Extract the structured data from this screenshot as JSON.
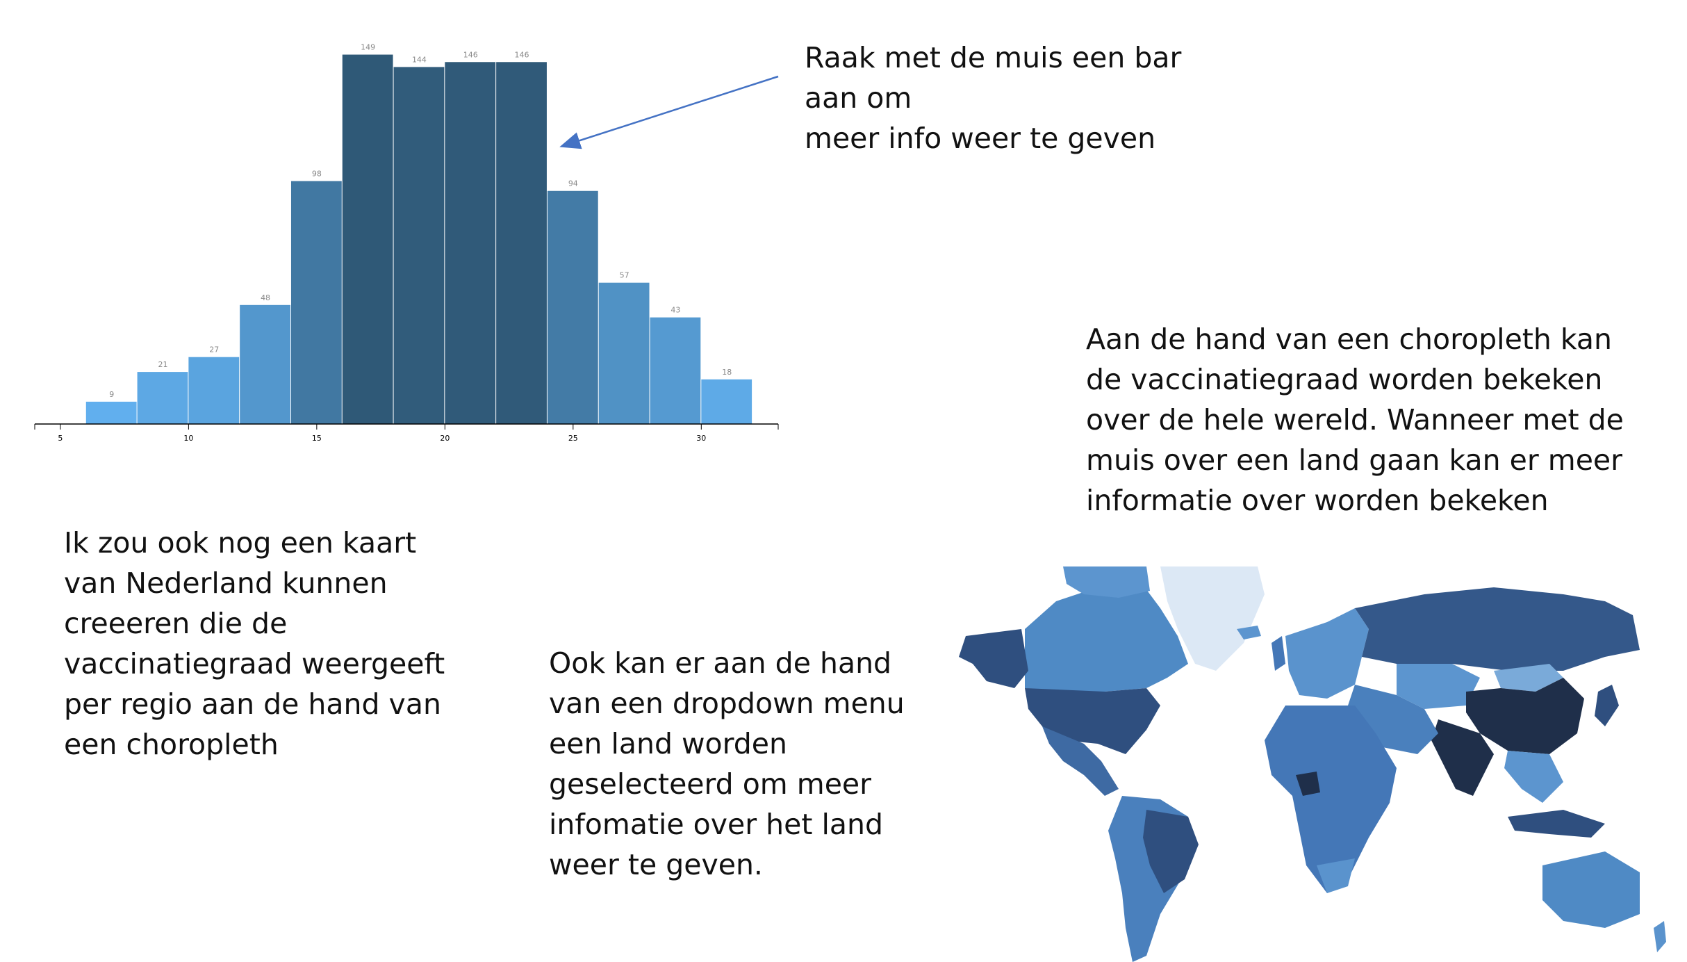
{
  "chart_data": [
    {
      "type": "bar",
      "subtype": "histogram",
      "bins": [
        [
          6,
          8
        ],
        [
          8,
          10
        ],
        [
          10,
          12
        ],
        [
          12,
          14
        ],
        [
          14,
          16
        ],
        [
          16,
          18
        ],
        [
          18,
          20
        ],
        [
          20,
          22
        ],
        [
          22,
          24
        ],
        [
          24,
          26
        ],
        [
          26,
          28
        ],
        [
          28,
          30
        ],
        [
          30,
          32
        ]
      ],
      "values": [
        9,
        21,
        27,
        48,
        98,
        149,
        144,
        146,
        146,
        94,
        57,
        43,
        18
      ],
      "labels": [
        "9",
        "21",
        "27",
        "48",
        "98",
        "149",
        "144",
        "146",
        "146",
        "94",
        "57",
        "43",
        "18"
      ],
      "x_ticks": [
        "5",
        "10",
        "15",
        "20",
        "25",
        "30"
      ],
      "xlim": [
        4,
        33
      ],
      "ylim": [
        0,
        150
      ],
      "grid": false,
      "color_scale": [
        "#64b5f6",
        "#2f5876"
      ]
    },
    {
      "type": "choropleth",
      "region": "world",
      "color_scale": [
        "#dce8f5",
        "#2b3a55"
      ]
    }
  ],
  "notes": {
    "hover_bar": "Raak met de muis een bar aan om\nmeer info weer te geven",
    "choropleth": "Aan de hand van een choropleth kan\nde vaccinatiegraad worden bekeken\nover de hele wereld. Wanneer met de\nmuis over een land gaan kan er meer\ninformatie over worden bekeken",
    "netherlands": "Ik zou ook nog een kaart\nvan Nederland kunnen\ncreeeren die de\nvaccinatiegraad weergeeft\nper regio aan de hand van\neen choropleth",
    "dropdown": "Ook kan er aan de hand\nvan een dropdown menu\neen land worden\ngeselecteerd om meer\ninfomatie over het land\nweer te geven."
  },
  "colors": {
    "arrow": "#4472c4",
    "text": "#111111",
    "axis": "#000000",
    "bar_label": "#888888"
  }
}
